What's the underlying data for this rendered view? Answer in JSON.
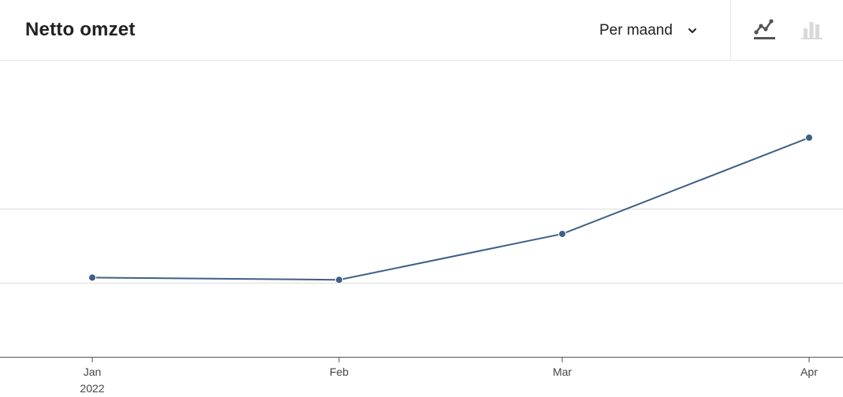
{
  "header": {
    "title": "Netto omzet",
    "period": {
      "selected": "Per maand",
      "icon": "chevron-down-icon"
    },
    "chart_toggle": {
      "line": {
        "icon": "line-chart-icon",
        "active": true
      },
      "bar": {
        "icon": "bar-chart-icon",
        "active": false
      }
    }
  },
  "colors": {
    "series": "#3f5f87",
    "grid": "#e6e6e6",
    "axis": "#555555",
    "active_icon": "#555555",
    "inactive_icon": "#d9d9d9"
  },
  "chart_data": {
    "type": "line",
    "title": "",
    "xlabel": "",
    "ylabel": "",
    "categories": [
      "Jan",
      "Feb",
      "Mar",
      "Apr"
    ],
    "year_label": "2022",
    "series": [
      {
        "values": [
          1.07,
          1.04,
          1.66,
          2.96
        ]
      }
    ],
    "ylim": [
      0,
      4
    ],
    "grid": true,
    "y_tick_labels_visible": false
  }
}
